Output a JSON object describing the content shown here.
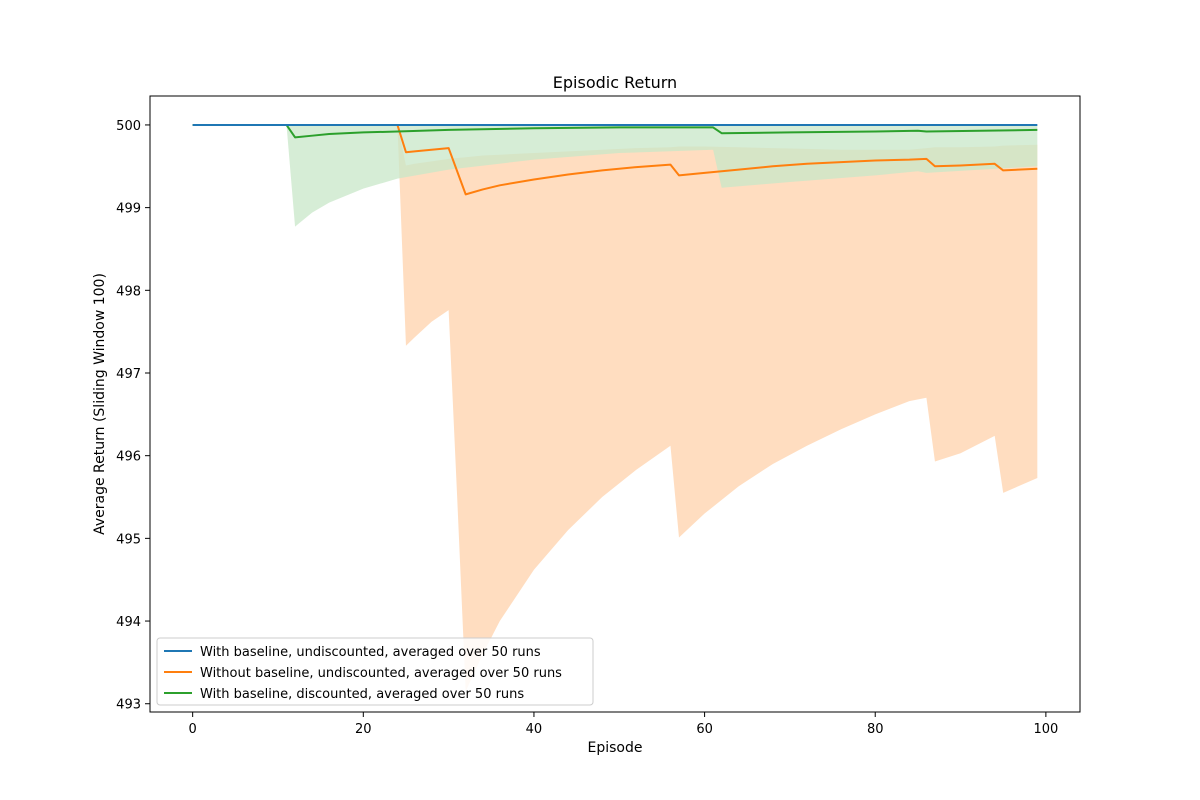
{
  "chart_data": {
    "type": "line",
    "title": "Episodic Return",
    "xlabel": "Episode",
    "ylabel": "Average Return (Sliding Window 100)",
    "xlim": [
      -5,
      104
    ],
    "ylim": [
      492.9,
      500.35
    ],
    "xticks": [
      0,
      20,
      40,
      60,
      80,
      100
    ],
    "yticks": [
      493,
      494,
      495,
      496,
      497,
      498,
      499,
      500
    ],
    "grid": false,
    "legend_position": "lower-left",
    "series": [
      {
        "name": "With baseline, undiscounted, averaged over 50 runs",
        "color": "#1f77b4",
        "x": [
          0,
          99
        ],
        "mean": [
          500,
          500
        ],
        "band_lower": null,
        "band_upper": null
      },
      {
        "name": "Without baseline, undiscounted, averaged over 50 runs",
        "color": "#ff7f0e",
        "band_color": "#ffdbbd",
        "x": [
          0,
          24,
          25,
          26,
          28,
          30,
          31,
          32,
          34,
          36,
          40,
          44,
          48,
          52,
          56,
          57,
          60,
          64,
          68,
          72,
          76,
          80,
          84,
          86,
          87,
          90,
          94,
          95,
          99
        ],
        "mean": [
          500,
          500,
          499.67,
          499.68,
          499.7,
          499.72,
          499.44,
          499.16,
          499.22,
          499.27,
          499.34,
          499.4,
          499.45,
          499.49,
          499.52,
          499.39,
          499.42,
          499.46,
          499.5,
          499.53,
          499.55,
          499.57,
          499.58,
          499.59,
          499.5,
          499.51,
          499.53,
          499.45,
          499.47
        ],
        "band_lower": [
          500,
          500,
          497.33,
          497.43,
          497.62,
          497.76,
          495.5,
          493.15,
          493.6,
          494.0,
          494.62,
          495.1,
          495.5,
          495.83,
          496.12,
          495.01,
          495.3,
          495.63,
          495.9,
          496.12,
          496.32,
          496.5,
          496.66,
          496.7,
          495.93,
          496.03,
          496.24,
          495.55,
          495.73
        ],
        "band_upper": [
          500,
          500,
          499.51,
          499.53,
          499.56,
          499.59,
          499.6,
          499.61,
          499.63,
          499.64,
          499.66,
          499.68,
          499.7,
          499.72,
          499.73,
          499.74,
          499.74,
          499.73,
          499.72,
          499.71,
          499.7,
          499.7,
          499.7,
          499.72,
          499.73,
          499.73,
          499.74,
          499.75,
          499.76
        ]
      },
      {
        "name": "With baseline, discounted, averaged over 50 runs",
        "color": "#2ca02c",
        "band_color": "#c8e7c8",
        "x": [
          0,
          11,
          12,
          14,
          16,
          20,
          24,
          30,
          40,
          50,
          61,
          62,
          70,
          80,
          85,
          86,
          99
        ],
        "mean": [
          500,
          500,
          499.85,
          499.87,
          499.89,
          499.91,
          499.92,
          499.94,
          499.96,
          499.97,
          499.97,
          499.9,
          499.91,
          499.92,
          499.93,
          499.92,
          499.94
        ],
        "band_lower": [
          500,
          500,
          498.77,
          498.94,
          499.06,
          499.23,
          499.35,
          499.46,
          499.58,
          499.66,
          499.7,
          499.24,
          499.31,
          499.39,
          499.44,
          499.42,
          499.5
        ],
        "band_upper": [
          500,
          500,
          500,
          500,
          500,
          500,
          500,
          500,
          500,
          500,
          500,
          500,
          500,
          500,
          500,
          500,
          500
        ]
      }
    ]
  }
}
